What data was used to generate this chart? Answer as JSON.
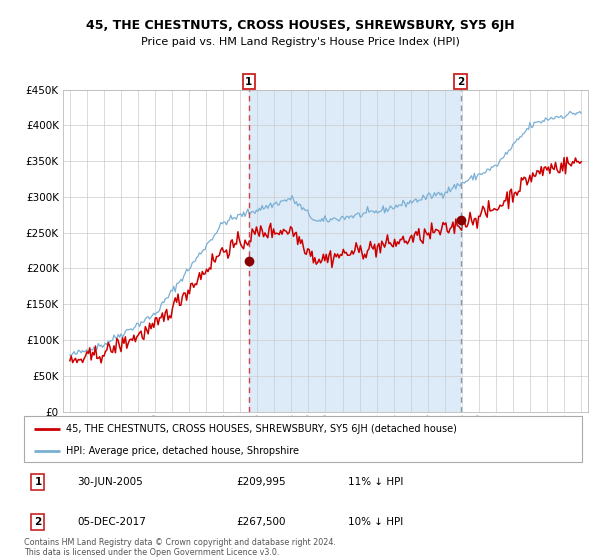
{
  "title": "45, THE CHESTNUTS, CROSS HOUSES, SHREWSBURY, SY5 6JH",
  "subtitle": "Price paid vs. HM Land Registry's House Price Index (HPI)",
  "legend_line1": "45, THE CHESTNUTS, CROSS HOUSES, SHREWSBURY, SY5 6JH (detached house)",
  "legend_line2": "HPI: Average price, detached house, Shropshire",
  "annotation1_date": "30-JUN-2005",
  "annotation1_price": "£209,995",
  "annotation1_hpi": "11% ↓ HPI",
  "annotation2_date": "05-DEC-2017",
  "annotation2_price": "£267,500",
  "annotation2_hpi": "10% ↓ HPI",
  "footer": "Contains HM Land Registry data © Crown copyright and database right 2024.\nThis data is licensed under the Open Government Licence v3.0.",
  "red_line_color": "#cc0000",
  "blue_line_color": "#7ab0d4",
  "bg_color": "#ddeaf7",
  "grid_color": "#cccccc",
  "marker1_x_year": 2005.5,
  "marker2_x_year": 2017.92,
  "marker1_y": 209995,
  "marker2_y": 267500,
  "vline1_x_year": 2005.5,
  "vline2_x_year": 2017.92,
  "ylim": [
    0,
    450000
  ],
  "xlim_start": 1994.6,
  "xlim_end": 2025.4
}
